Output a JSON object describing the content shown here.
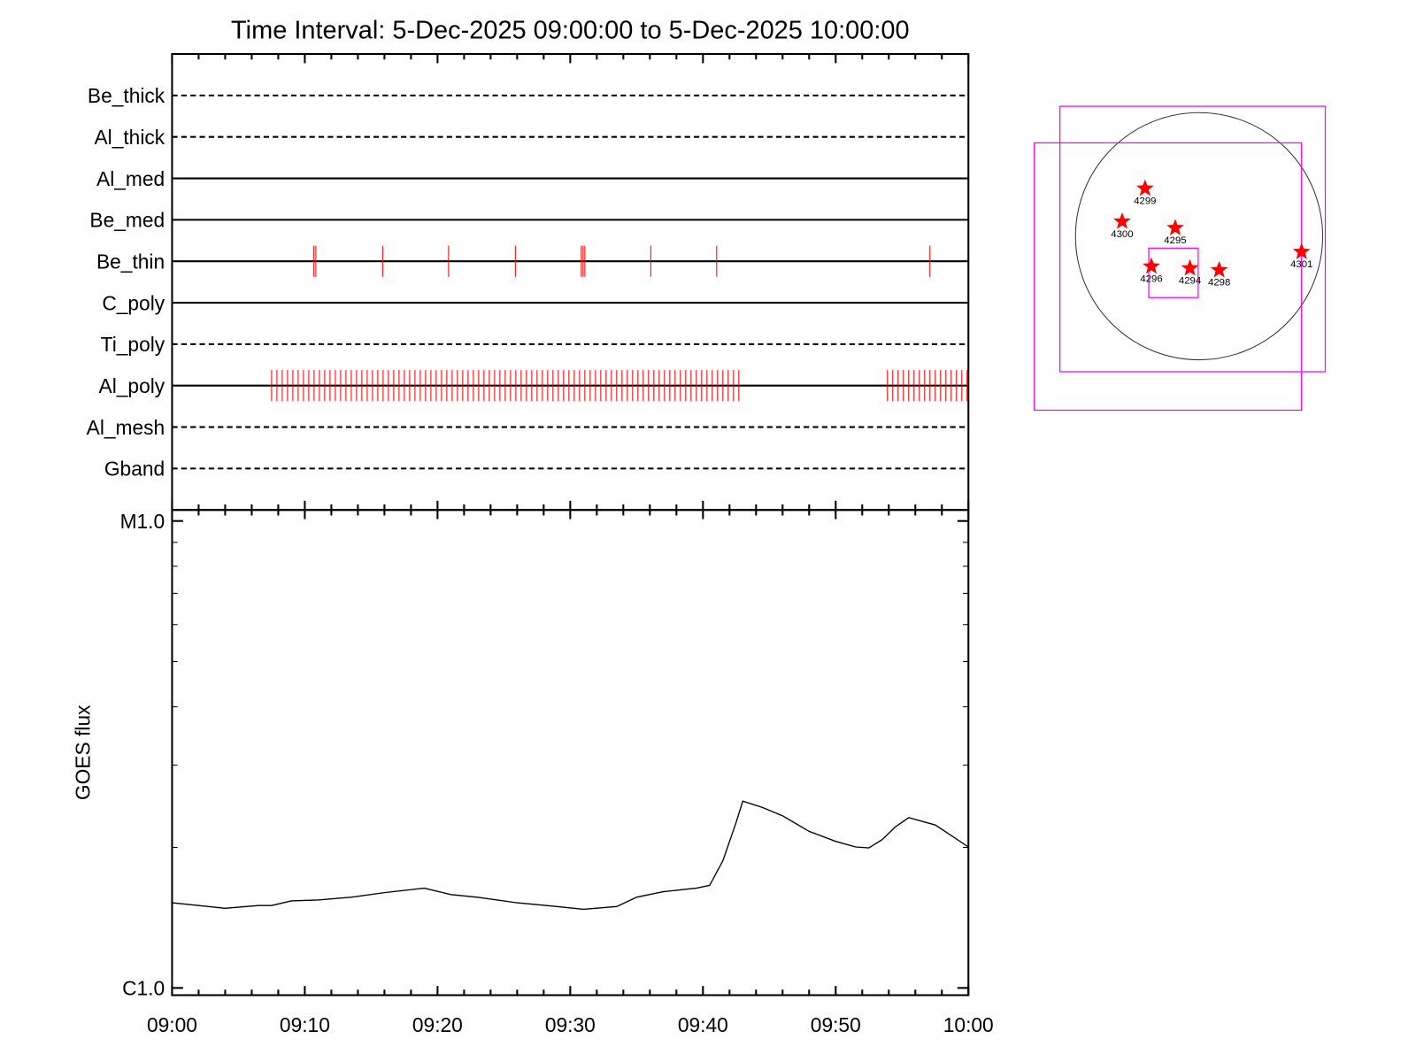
{
  "chart_data": [
    {
      "type": "events",
      "title": "Time Interval:  5-Dec-2025 09:00:00 to  5-Dec-2025 10:00:00",
      "xlim": [
        "09:00",
        "10:00"
      ],
      "event_color": "#ff0000",
      "channels": [
        {
          "name": "Be_thick",
          "style": "dashed",
          "events": []
        },
        {
          "name": "Al_thick",
          "style": "dashed",
          "events": []
        },
        {
          "name": "Al_med",
          "style": "solid",
          "events": []
        },
        {
          "name": "Be_med",
          "style": "solid",
          "events": []
        },
        {
          "name": "Be_thin",
          "style": "solid",
          "events": [
            "09:10:41",
            "09:10:50",
            "09:15:52",
            "09:20:50",
            "09:25:52",
            "09:30:50",
            "09:30:58",
            "09:31:06",
            "09:36:04",
            "09:41:02",
            "09:57:06"
          ]
        },
        {
          "name": "C_poly",
          "style": "solid",
          "events": []
        },
        {
          "name": "Ti_poly",
          "style": "dashed",
          "events": []
        },
        {
          "name": "Al_poly",
          "style": "solid",
          "events": [
            "09:07:30",
            "09:07:54",
            "09:08:18",
            "09:08:42",
            "09:09:06",
            "09:09:30",
            "09:09:54",
            "09:10:18",
            "09:10:42",
            "09:11:06",
            "09:11:30",
            "09:11:54",
            "09:12:18",
            "09:12:42",
            "09:13:06",
            "09:13:30",
            "09:13:54",
            "09:14:18",
            "09:14:42",
            "09:15:06",
            "09:15:30",
            "09:15:54",
            "09:16:18",
            "09:16:42",
            "09:17:06",
            "09:17:30",
            "09:17:54",
            "09:18:18",
            "09:18:42",
            "09:19:06",
            "09:19:30",
            "09:19:54",
            "09:20:18",
            "09:20:42",
            "09:21:06",
            "09:21:30",
            "09:21:54",
            "09:22:18",
            "09:22:42",
            "09:23:06",
            "09:23:30",
            "09:23:54",
            "09:24:18",
            "09:24:42",
            "09:25:06",
            "09:25:30",
            "09:25:54",
            "09:26:18",
            "09:26:42",
            "09:27:06",
            "09:27:30",
            "09:27:54",
            "09:28:18",
            "09:28:42",
            "09:29:06",
            "09:29:30",
            "09:29:54",
            "09:30:18",
            "09:30:42",
            "09:31:06",
            "09:31:30",
            "09:31:54",
            "09:32:18",
            "09:32:42",
            "09:33:06",
            "09:33:30",
            "09:33:54",
            "09:34:18",
            "09:34:42",
            "09:35:06",
            "09:35:30",
            "09:35:54",
            "09:36:18",
            "09:36:42",
            "09:37:06",
            "09:37:30",
            "09:37:54",
            "09:38:18",
            "09:38:42",
            "09:39:06",
            "09:39:30",
            "09:39:54",
            "09:40:18",
            "09:40:42",
            "09:41:06",
            "09:41:30",
            "09:41:54",
            "09:42:18",
            "09:42:42",
            "09:53:54",
            "09:54:18",
            "09:54:42",
            "09:55:06",
            "09:55:30",
            "09:55:54",
            "09:56:18",
            "09:56:42",
            "09:57:06",
            "09:57:30",
            "09:57:54",
            "09:58:18",
            "09:58:42",
            "09:59:06",
            "09:59:30",
            "09:59:54"
          ]
        },
        {
          "name": "Al_mesh",
          "style": "dashed",
          "events": []
        },
        {
          "name": "Gband",
          "style": "dashed",
          "events": []
        }
      ]
    },
    {
      "type": "line",
      "ylabel": "GOES flux",
      "color": "#000000",
      "log_scale": true,
      "xlim": [
        "09:00",
        "10:00"
      ],
      "xticks": [
        "09:00",
        "09:10",
        "09:20",
        "09:30",
        "09:40",
        "09:50",
        "10:00"
      ],
      "ylim": [
        9.65e-07,
        1.056e-05
      ],
      "yticks": [
        {
          "value": 1e-06,
          "label": "C1.0"
        },
        {
          "value": 1e-05,
          "label": "M1.0"
        }
      ],
      "x": [
        "09:00:00",
        "09:02:00",
        "09:04:00",
        "09:06:30",
        "09:07:30",
        "09:09:00",
        "09:11:00",
        "09:13:30",
        "09:16:00",
        "09:19:00",
        "09:21:00",
        "09:23:00",
        "09:26:00",
        "09:29:00",
        "09:31:00",
        "09:33:30",
        "09:35:00",
        "09:37:00",
        "09:39:30",
        "09:40:30",
        "09:41:30",
        "09:42:30",
        "09:43:00",
        "09:44:30",
        "09:46:00",
        "09:48:00",
        "09:50:00",
        "09:51:30",
        "09:52:30",
        "09:53:30",
        "09:54:30",
        "09:55:30",
        "09:57:30",
        "10:00:00"
      ],
      "values": [
        1.522e-06,
        1.501e-06,
        1.481e-06,
        1.501e-06,
        1.501e-06,
        1.536e-06,
        1.543e-06,
        1.564e-06,
        1.6e-06,
        1.636e-06,
        1.585e-06,
        1.564e-06,
        1.522e-06,
        1.494e-06,
        1.474e-06,
        1.494e-06,
        1.564e-06,
        1.607e-06,
        1.636e-06,
        1.658e-06,
        1.873e-06,
        2.264e-06,
        2.512e-06,
        2.434e-06,
        2.337e-06,
        2.164e-06,
        2.06e-06,
        2.004e-06,
        1.995e-06,
        2.078e-06,
        2.214e-06,
        2.316e-06,
        2.234e-06,
        2.004e-06
      ]
    },
    {
      "type": "map",
      "disk_radius": 975,
      "marker_color": "#ff0000",
      "box_color": "#ff00ff",
      "boxes": [
        {
          "x": -51,
          "y": -22,
          "size": 2094
        },
        {
          "x": -246,
          "y": -318,
          "size": 2109
        },
        {
          "x": -202,
          "y": -289,
          "size": 390
        }
      ],
      "regions": [
        {
          "label": "4299",
          "x": -426,
          "y": 376
        },
        {
          "label": "4300",
          "x": -607,
          "y": 116
        },
        {
          "label": "4295",
          "x": -188,
          "y": 65
        },
        {
          "label": "4301",
          "x": 809,
          "y": -123
        },
        {
          "label": "4296",
          "x": -376,
          "y": -238
        },
        {
          "label": "4294",
          "x": -72,
          "y": -253
        },
        {
          "label": "4298",
          "x": 159,
          "y": -267
        }
      ]
    }
  ]
}
